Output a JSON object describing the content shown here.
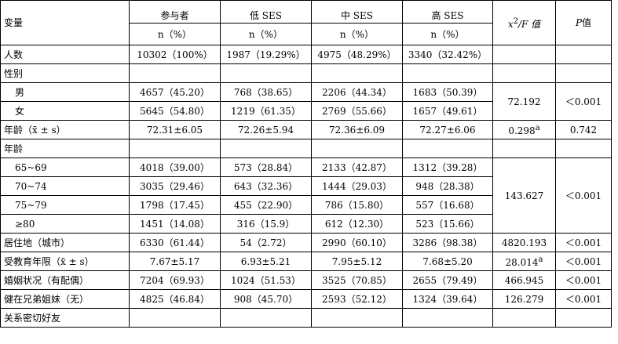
{
  "header": {
    "var_label": "变量",
    "groups": [
      "参与者",
      "低 SES",
      "中 SES",
      "高 SES"
    ],
    "unit": "n（%）",
    "stat_chi": "x",
    "stat_sup": "2",
    "stat_rest": "/F 值",
    "p_letter": "P",
    "p_rest": "值"
  },
  "rows": {
    "total": {
      "label": "人数",
      "values": [
        "10302（100%）",
        "1987（19.29%）",
        "4975（48.29%）",
        "3340（32.42%）"
      ]
    },
    "gender_title": "性别",
    "male": {
      "label": "男",
      "values": [
        "4657（45.20）",
        "768（38.65）",
        "2206（44.34）",
        "1683（50.39）"
      ]
    },
    "female": {
      "label": "女",
      "values": [
        "5645（54.80）",
        "1219（61.35）",
        "2769（55.66）",
        "1657（49.61）"
      ]
    },
    "gender_stat": "72.192",
    "gender_p": "＜0.001",
    "age_mean": {
      "label": "年龄（x̄ ± s）",
      "values": [
        "72.31±6.05",
        "72.26±5.94",
        "72.36±6.09",
        "72.27±6.06"
      ],
      "stat": "0.298",
      "stat_sup": "a",
      "p": "0.742"
    },
    "age_title": "年龄",
    "age_65": {
      "label": "65~69",
      "values": [
        "4018（39.00）",
        "573（28.84）",
        "2133（42.87）",
        "1312（39.28）"
      ]
    },
    "age_70": {
      "label": "70~74",
      "values": [
        "3035（29.46）",
        "643（32.36）",
        "1444（29.03）",
        "948（28.38）"
      ]
    },
    "age_75": {
      "label": "75~79",
      "values": [
        "1798（17.45）",
        "455（22.90）",
        "786（15.80）",
        "557（16.68）"
      ]
    },
    "age_80": {
      "label": "≥80",
      "values": [
        "1451（14.08）",
        "316（15.9）",
        "612（12.30）",
        "523（15.66）"
      ]
    },
    "age_stat": "143.627",
    "age_p": "＜0.001",
    "residence": {
      "label": "居住地（城市）",
      "values": [
        "6330（61.44）",
        "54（2.72）",
        "2990（60.10）",
        "3286（98.38）"
      ],
      "stat": "4820.193",
      "p": "＜0.001"
    },
    "education": {
      "label": "受教育年限（x̄ ± s）",
      "values": [
        "7.67±5.17",
        "6.93±5.21",
        "7.95±5.12",
        "7.68±5.20"
      ],
      "stat": "28.014",
      "stat_sup": "a",
      "p": "＜0.001"
    },
    "marital": {
      "label": "婚姻状况（有配偶）",
      "values": [
        "7204（69.93）",
        "1024（51.53）",
        "3525（70.85）",
        "2655（79.49）"
      ],
      "stat": "466.945",
      "p": "＜0.001"
    },
    "siblings": {
      "label": "健在兄弟姐妹（无）",
      "values": [
        "4825（46.84）",
        "908（45.70）",
        "2593（52.12）",
        "1324（39.64）"
      ],
      "stat": "126.279",
      "p": "＜0.001"
    },
    "friend_title": "关系密切好友"
  }
}
